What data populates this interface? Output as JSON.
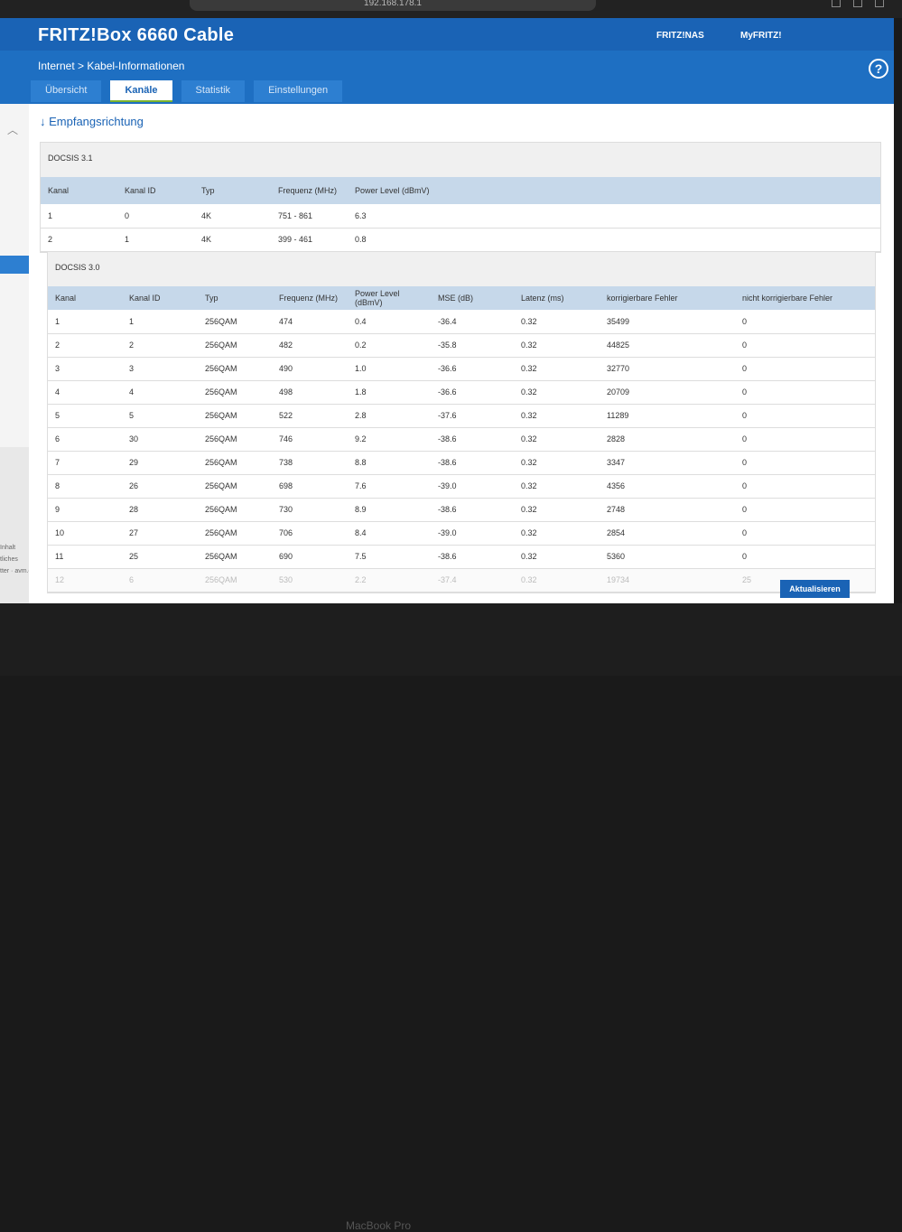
{
  "browser": {
    "url": "192.168.178.1"
  },
  "app": {
    "title": "FRITZ!Box 6660 Cable",
    "links": [
      "FRITZ!NAS",
      "MyFRITZ!"
    ],
    "breadcrumb": "Internet > Kabel-Informationen",
    "help": "?"
  },
  "tabs": [
    {
      "label": "Übersicht"
    },
    {
      "label": "Kanäle",
      "active": true
    },
    {
      "label": "Statistik"
    },
    {
      "label": "Einstellungen"
    }
  ],
  "sidebar": {
    "footer": [
      "Inhalt",
      "tliches",
      "tter · avm.de"
    ]
  },
  "section": {
    "title": "↓ Empfangsrichtung"
  },
  "docsis31": {
    "title": "DOCSIS 3.1",
    "headers": [
      "Kanal",
      "Kanal ID",
      "Typ",
      "Frequenz (MHz)",
      "Power Level (dBmV)"
    ],
    "rows": [
      [
        "1",
        "0",
        "4K",
        "751 - 861",
        "6.3"
      ],
      [
        "2",
        "1",
        "4K",
        "399 - 461",
        "0.8"
      ]
    ]
  },
  "docsis30": {
    "title": "DOCSIS 3.0",
    "headers": [
      "Kanal",
      "Kanal ID",
      "Typ",
      "Frequenz (MHz)",
      "Power Level (dBmV)",
      "MSE (dB)",
      "Latenz (ms)",
      "korrigierbare Fehler",
      "nicht korrigierbare Fehler"
    ],
    "rows": [
      [
        "1",
        "1",
        "256QAM",
        "474",
        "0.4",
        "-36.4",
        "0.32",
        "35499",
        "0"
      ],
      [
        "2",
        "2",
        "256QAM",
        "482",
        "0.2",
        "-35.8",
        "0.32",
        "44825",
        "0"
      ],
      [
        "3",
        "3",
        "256QAM",
        "490",
        "1.0",
        "-36.6",
        "0.32",
        "32770",
        "0"
      ],
      [
        "4",
        "4",
        "256QAM",
        "498",
        "1.8",
        "-36.6",
        "0.32",
        "20709",
        "0"
      ],
      [
        "5",
        "5",
        "256QAM",
        "522",
        "2.8",
        "-37.6",
        "0.32",
        "11289",
        "0"
      ],
      [
        "6",
        "30",
        "256QAM",
        "746",
        "9.2",
        "-38.6",
        "0.32",
        "2828",
        "0"
      ],
      [
        "7",
        "29",
        "256QAM",
        "738",
        "8.8",
        "-38.6",
        "0.32",
        "3347",
        "0"
      ],
      [
        "8",
        "26",
        "256QAM",
        "698",
        "7.6",
        "-39.0",
        "0.32",
        "4356",
        "0"
      ],
      [
        "9",
        "28",
        "256QAM",
        "730",
        "8.9",
        "-38.6",
        "0.32",
        "2748",
        "0"
      ],
      [
        "10",
        "27",
        "256QAM",
        "706",
        "8.4",
        "-39.0",
        "0.32",
        "2854",
        "0"
      ],
      [
        "11",
        "25",
        "256QAM",
        "690",
        "7.5",
        "-38.6",
        "0.32",
        "5360",
        "0"
      ],
      [
        "12",
        "6",
        "256QAM",
        "530",
        "2.2",
        "-37.4",
        "0.32",
        "19734",
        "25"
      ]
    ]
  },
  "buttons": {
    "update": "Aktualisieren"
  },
  "device": {
    "label": "MacBook Pro"
  }
}
